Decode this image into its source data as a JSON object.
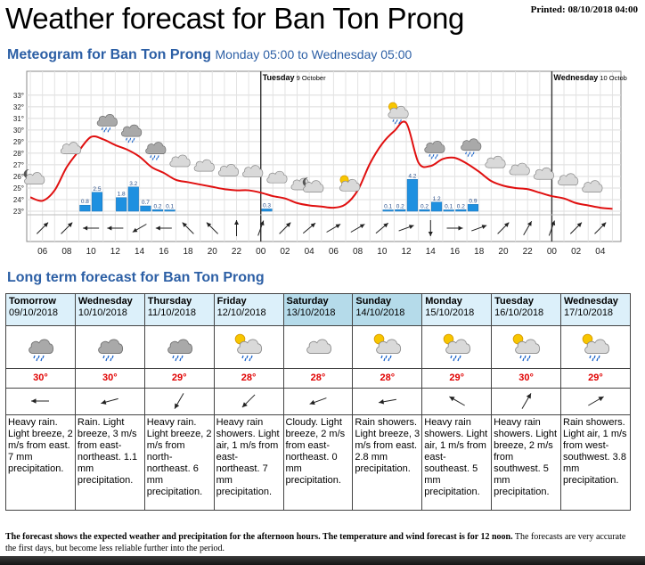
{
  "header": {
    "title": "Weather forecast for Ban Ton Prong",
    "printed": "Printed: 08/10/2018 04:00"
  },
  "meteogram": {
    "title": "Meteogram for Ban Ton Prong",
    "subtitle": "Monday 05:00 to Wednesday 05:00",
    "day_labels": [
      {
        "name": "Tuesday",
        "date": "9 October"
      },
      {
        "name": "Wednesday",
        "date": "10 Octob"
      }
    ]
  },
  "chart_data": {
    "type": "line",
    "y_ticks": [
      "23°",
      "24°",
      "25°",
      "26°",
      "27°",
      "28°",
      "29°",
      "30°",
      "31°",
      "32°",
      "33°"
    ],
    "ylim": [
      23,
      33.6
    ],
    "x_tick_labels": [
      "06",
      "08",
      "10",
      "12",
      "14",
      "16",
      "18",
      "20",
      "22",
      "00",
      "02",
      "04",
      "06",
      "08",
      "10",
      "12",
      "14",
      "16",
      "18",
      "20",
      "22",
      "00",
      "02",
      "04"
    ],
    "temperature_series": {
      "name": "Temperature",
      "hours": [
        5,
        6,
        7,
        8,
        9,
        10,
        11,
        12,
        13,
        14,
        15,
        16,
        17,
        18,
        19,
        20,
        21,
        22,
        23,
        24,
        25,
        26,
        27,
        28,
        29,
        30,
        31,
        32,
        33,
        34,
        35,
        36,
        37,
        38,
        39,
        40,
        41,
        42,
        43,
        44,
        45,
        46,
        47,
        48,
        49,
        50,
        51,
        52,
        53
      ],
      "values": [
        24.2,
        23.9,
        24.8,
        26.8,
        28.2,
        29.4,
        29.2,
        28.7,
        28.3,
        27.7,
        26.8,
        26.3,
        25.7,
        25.5,
        25.3,
        25.1,
        24.9,
        24.8,
        24.8,
        24.6,
        24.3,
        24.1,
        23.7,
        23.5,
        23.4,
        23.3,
        23.6,
        24.8,
        27.1,
        28.8,
        29.9,
        30.6,
        27.2,
        26.9,
        27.5,
        27.6,
        27.1,
        26.4,
        25.6,
        25.2,
        25.0,
        24.9,
        24.6,
        24.3,
        24.1,
        23.7,
        23.5,
        23.3,
        23.2
      ]
    },
    "precipitation": [
      {
        "hour": 9,
        "value": "0.8"
      },
      {
        "hour": 10,
        "value": "2.5"
      },
      {
        "hour": 12,
        "value": "1.8"
      },
      {
        "hour": 13,
        "value": "3.2"
      },
      {
        "hour": 14,
        "value": "0.7"
      },
      {
        "hour": 15,
        "value": "0.2"
      },
      {
        "hour": 16,
        "value": "0.1"
      },
      {
        "hour": 24,
        "value": "0.3"
      },
      {
        "hour": 34,
        "value": "0.1"
      },
      {
        "hour": 35,
        "value": "0.2"
      },
      {
        "hour": 36,
        "value": "4.2"
      },
      {
        "hour": 37,
        "value": "0.2"
      },
      {
        "hour": 38,
        "value": "1.2"
      },
      {
        "hour": 39,
        "value": "0.1"
      },
      {
        "hour": 40,
        "value": "0.2"
      },
      {
        "hour": 41,
        "value": "0.9"
      }
    ],
    "symbols": [
      {
        "hour": 5,
        "icon": "partly-cloudy-night-icon"
      },
      {
        "hour": 8,
        "icon": "cloudy-icon"
      },
      {
        "hour": 11,
        "icon": "cloud-light-rain-icon"
      },
      {
        "hour": 13,
        "icon": "cloud-light-rain-icon"
      },
      {
        "hour": 15,
        "icon": "cloud-light-rain-icon"
      },
      {
        "hour": 17,
        "icon": "cloudy-icon"
      },
      {
        "hour": 19,
        "icon": "cloudy-icon"
      },
      {
        "hour": 21,
        "icon": "cloudy-icon"
      },
      {
        "hour": 23,
        "icon": "cloudy-icon"
      },
      {
        "hour": 25,
        "icon": "cloudy-icon"
      },
      {
        "hour": 27,
        "icon": "cloudy-icon"
      },
      {
        "hour": 28,
        "icon": "partly-cloudy-night-icon"
      },
      {
        "hour": 31,
        "icon": "partly-cloudy-day-icon"
      },
      {
        "hour": 35,
        "icon": "rain-showers-day-icon"
      },
      {
        "hour": 38,
        "icon": "cloud-light-rain-icon"
      },
      {
        "hour": 41,
        "icon": "cloud-light-rain-icon"
      },
      {
        "hour": 43,
        "icon": "cloudy-icon"
      },
      {
        "hour": 45,
        "icon": "cloudy-icon"
      },
      {
        "hour": 47,
        "icon": "cloudy-icon"
      },
      {
        "hour": 49,
        "icon": "cloudy-icon"
      },
      {
        "hour": 51,
        "icon": "cloudy-icon"
      }
    ],
    "wind_directions": [
      {
        "hour": 6,
        "deg": 225
      },
      {
        "hour": 8,
        "deg": 225
      },
      {
        "hour": 10,
        "deg": 90
      },
      {
        "hour": 12,
        "deg": 90
      },
      {
        "hour": 14,
        "deg": 60
      },
      {
        "hour": 16,
        "deg": 90
      },
      {
        "hour": 18,
        "deg": 135
      },
      {
        "hour": 20,
        "deg": 135
      },
      {
        "hour": 22,
        "deg": 180
      },
      {
        "hour": 24,
        "deg": 200
      },
      {
        "hour": 26,
        "deg": 225
      },
      {
        "hour": 28,
        "deg": 230
      },
      {
        "hour": 30,
        "deg": 240
      },
      {
        "hour": 32,
        "deg": 240
      },
      {
        "hour": 34,
        "deg": 230
      },
      {
        "hour": 36,
        "deg": 250
      },
      {
        "hour": 38,
        "deg": 0
      },
      {
        "hour": 40,
        "deg": 270
      },
      {
        "hour": 42,
        "deg": 250
      },
      {
        "hour": 44,
        "deg": 225
      },
      {
        "hour": 46,
        "deg": 210
      },
      {
        "hour": 48,
        "deg": 200
      },
      {
        "hour": 50,
        "deg": 225
      },
      {
        "hour": 52,
        "deg": 225
      }
    ]
  },
  "long_term": {
    "title": "Long term forecast for Ban Ton Prong",
    "days": [
      {
        "name": "Tomorrow",
        "date": "09/10/2018",
        "weekend": false,
        "icon": "cloud-light-rain-icon",
        "temp": "30°",
        "wind_deg": 90,
        "desc": "Heavy rain. Light breeze, 2 m/s from east. 7 mm precipitation."
      },
      {
        "name": "Wednesday",
        "date": "10/10/2018",
        "weekend": false,
        "icon": "cloud-light-rain-icon",
        "temp": "30°",
        "wind_deg": 75,
        "desc": "Rain. Light breeze, 3 m/s from east-northeast. 1.1 mm precipitation."
      },
      {
        "name": "Thursday",
        "date": "11/10/2018",
        "weekend": false,
        "icon": "cloud-light-rain-icon",
        "temp": "29°",
        "wind_deg": 30,
        "desc": "Heavy rain. Light breeze, 2 m/s from north-northeast. 6 mm precipitation."
      },
      {
        "name": "Friday",
        "date": "12/10/2018",
        "weekend": false,
        "icon": "rain-showers-day-icon",
        "temp": "28°",
        "wind_deg": 45,
        "desc": "Heavy rain showers. Light air, 1 m/s from east-northeast. 7 mm precipitation."
      },
      {
        "name": "Saturday",
        "date": "13/10/2018",
        "weekend": true,
        "icon": "cloudy-icon",
        "temp": "28°",
        "wind_deg": 70,
        "desc": "Cloudy. Light breeze, 2 m/s from east-northeast. 0 mm precipitation."
      },
      {
        "name": "Sunday",
        "date": "14/10/2018",
        "weekend": true,
        "icon": "rain-showers-day-icon",
        "temp": "28°",
        "wind_deg": 80,
        "desc": "Rain showers. Light breeze, 3 m/s from east. 2.8 mm precipitation."
      },
      {
        "name": "Monday",
        "date": "15/10/2018",
        "weekend": false,
        "icon": "rain-showers-day-icon",
        "temp": "29°",
        "wind_deg": 120,
        "desc": "Heavy rain showers. Light air, 1 m/s from east-southeast. 5 mm precipitation."
      },
      {
        "name": "Tuesday",
        "date": "16/10/2018",
        "weekend": false,
        "icon": "rain-showers-day-icon",
        "temp": "30°",
        "wind_deg": 210,
        "desc": "Heavy rain showers. Light breeze, 2 m/s from southwest. 5 mm precipitation."
      },
      {
        "name": "Wednesday",
        "date": "17/10/2018",
        "weekend": false,
        "icon": "rain-showers-day-icon",
        "temp": "29°",
        "wind_deg": 240,
        "desc": "Rain showers. Light air, 1 m/s from west-southwest. 3.8 mm precipitation."
      }
    ]
  },
  "footer": {
    "bold_text": "The forecast shows the expected weather and precipitation for the afternoon hours. The temperature and wind forecast is for 12 noon.",
    "normal_text": " The forecasts are very accurate the first days, but become less reliable further into the period."
  },
  "colors": {
    "title_blue": "#2c5fa5",
    "temp_red": "#e00000",
    "precip_blue": "#1e90e0",
    "grid": "#d8d8d8",
    "weekday_bg": "#dcf0fa",
    "weekend_bg": "#b5dbea"
  }
}
